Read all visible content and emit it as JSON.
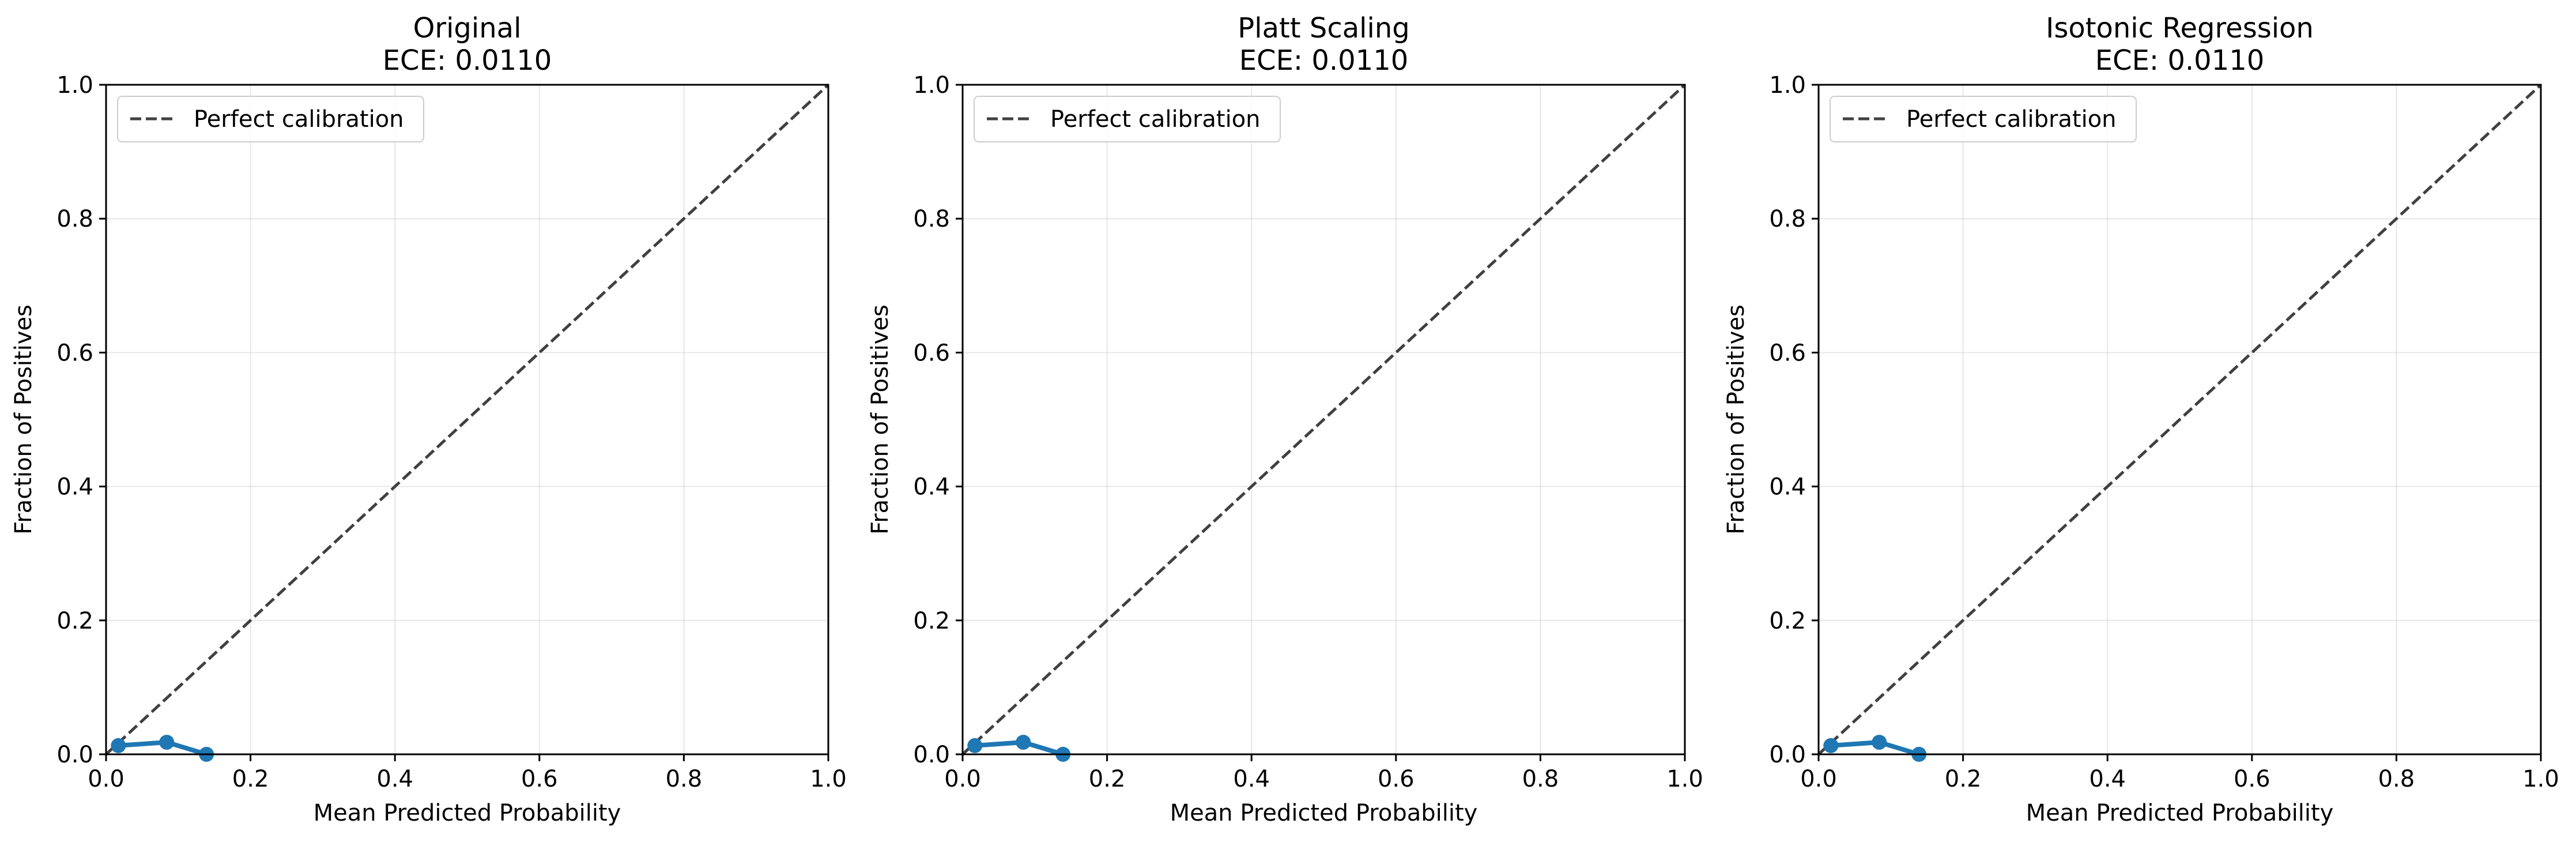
{
  "chart_data": [
    {
      "type": "line",
      "title": "Original\nECE: 0.0110",
      "xlabel": "Mean Predicted Probability",
      "ylabel": "Fraction of Positives",
      "xlim": [
        0,
        1
      ],
      "ylim": [
        0,
        1
      ],
      "xticks": [
        "0.0",
        "0.2",
        "0.4",
        "0.6",
        "0.8",
        "1.0"
      ],
      "yticks": [
        "0.0",
        "0.2",
        "0.4",
        "0.6",
        "0.8",
        "1.0"
      ],
      "grid": true,
      "legend_position": "upper-left",
      "series": [
        {
          "name": "Perfect calibration",
          "style": "dashed",
          "color": "#404040",
          "x": [
            0,
            1
          ],
          "y": [
            0,
            1
          ]
        },
        {
          "name": "",
          "style": "solid-marker",
          "color": "#1f77b4",
          "x": [
            0.017,
            0.084,
            0.139
          ],
          "y": [
            0.013,
            0.018,
            0.0
          ]
        }
      ]
    },
    {
      "type": "line",
      "title": "Platt Scaling\nECE: 0.0110",
      "xlabel": "Mean Predicted Probability",
      "ylabel": "Fraction of Positives",
      "xlim": [
        0,
        1
      ],
      "ylim": [
        0,
        1
      ],
      "xticks": [
        "0.0",
        "0.2",
        "0.4",
        "0.6",
        "0.8",
        "1.0"
      ],
      "yticks": [
        "0.0",
        "0.2",
        "0.4",
        "0.6",
        "0.8",
        "1.0"
      ],
      "grid": true,
      "legend_position": "upper-left",
      "series": [
        {
          "name": "Perfect calibration",
          "style": "dashed",
          "color": "#404040",
          "x": [
            0,
            1
          ],
          "y": [
            0,
            1
          ]
        },
        {
          "name": "",
          "style": "solid-marker",
          "color": "#1f77b4",
          "x": [
            0.017,
            0.084,
            0.139
          ],
          "y": [
            0.013,
            0.018,
            0.0
          ]
        }
      ]
    },
    {
      "type": "line",
      "title": "Isotonic Regression\nECE: 0.0110",
      "xlabel": "Mean Predicted Probability",
      "ylabel": "Fraction of Positives",
      "xlim": [
        0,
        1
      ],
      "ylim": [
        0,
        1
      ],
      "xticks": [
        "0.0",
        "0.2",
        "0.4",
        "0.6",
        "0.8",
        "1.0"
      ],
      "yticks": [
        "0.0",
        "0.2",
        "0.4",
        "0.6",
        "0.8",
        "1.0"
      ],
      "grid": true,
      "legend_position": "upper-left",
      "series": [
        {
          "name": "Perfect calibration",
          "style": "dashed",
          "color": "#404040",
          "x": [
            0,
            1
          ],
          "y": [
            0,
            1
          ]
        },
        {
          "name": "",
          "style": "solid-marker",
          "color": "#1f77b4",
          "x": [
            0.017,
            0.084,
            0.139
          ],
          "y": [
            0.013,
            0.018,
            0.0
          ]
        }
      ]
    }
  ]
}
